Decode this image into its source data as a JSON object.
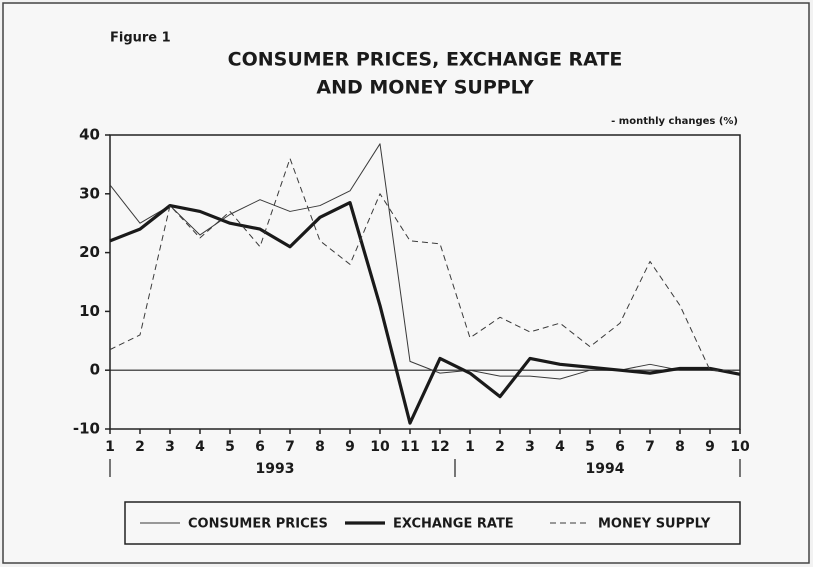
{
  "chart_data": {
    "type": "line",
    "figure_label": "Figure 1",
    "title": [
      "CONSUMER PRICES, EXCHANGE RATE",
      "AND MONEY SUPPLY"
    ],
    "subtitle": "- monthly changes (%)",
    "category_groups": [
      {
        "label": "1993",
        "categories": [
          "1",
          "2",
          "3",
          "4",
          "5",
          "6",
          "7",
          "8",
          "9",
          "10",
          "11",
          "12"
        ]
      },
      {
        "label": "1994",
        "categories": [
          "1",
          "2",
          "3",
          "4",
          "5",
          "6",
          "7",
          "8",
          "9",
          "10"
        ]
      }
    ],
    "ylim": [
      -10,
      40
    ],
    "yticks": [
      -10,
      0,
      10,
      20,
      30,
      40
    ],
    "zero_line": true,
    "legend": "bottom",
    "series": [
      {
        "name": "CONSUMER PRICES",
        "color": "#3a3a3a",
        "style": "thin",
        "values": [
          31.5,
          25,
          28,
          23,
          26.5,
          29,
          27,
          28,
          30.5,
          38.5,
          1.5,
          -0.5,
          0,
          -1,
          -1,
          -1.5,
          0,
          0,
          1,
          0,
          0,
          -0.5
        ]
      },
      {
        "name": "EXCHANGE RATE",
        "color": "#1a1a1a",
        "style": "thick",
        "values": [
          22,
          24,
          28,
          27,
          25,
          24,
          21,
          26,
          28.5,
          11,
          -9,
          2,
          -0.5,
          -4.5,
          2,
          1,
          0.5,
          0,
          -0.5,
          0.3,
          0.3,
          -0.7
        ]
      },
      {
        "name": "MONEY SUPPLY",
        "color": "#3a3a3a",
        "style": "dashed",
        "values": [
          3.5,
          6,
          28,
          22.5,
          27,
          21,
          36,
          22,
          18,
          30,
          22,
          21.5,
          5.5,
          9,
          6.5,
          8,
          4,
          8,
          18.5,
          11,
          0,
          0
        ]
      }
    ]
  }
}
